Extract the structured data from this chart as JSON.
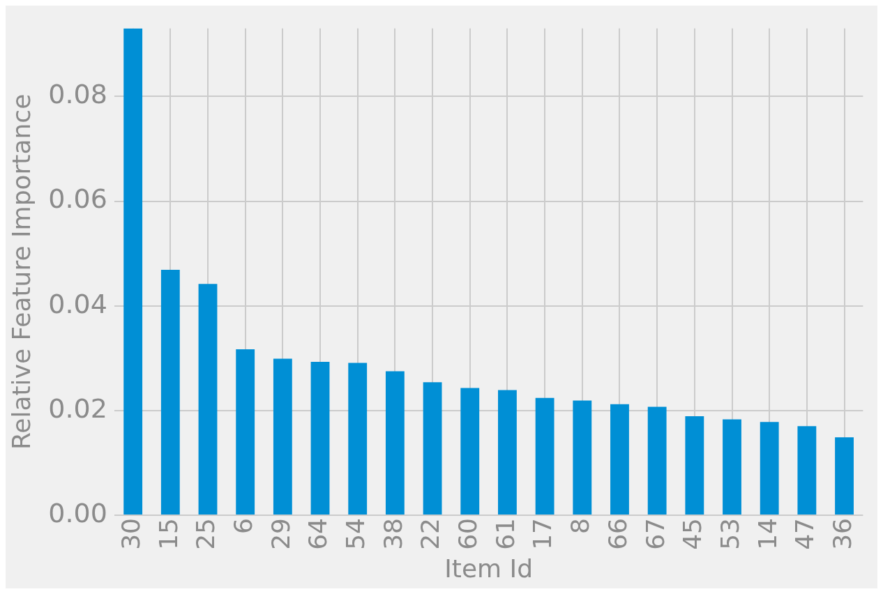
{
  "chart_data": {
    "type": "bar",
    "xlabel": "Item Id",
    "ylabel": "Relative Feature Importance",
    "categories": [
      "30",
      "15",
      "25",
      "6",
      "29",
      "64",
      "54",
      "38",
      "22",
      "60",
      "61",
      "17",
      "8",
      "66",
      "67",
      "45",
      "53",
      "14",
      "47",
      "36"
    ],
    "values": [
      0.093,
      0.0469,
      0.0442,
      0.0317,
      0.0299,
      0.0293,
      0.0291,
      0.0275,
      0.0254,
      0.0243,
      0.0239,
      0.0224,
      0.0219,
      0.0212,
      0.0207,
      0.0189,
      0.0183,
      0.0178,
      0.017,
      0.0149
    ],
    "color": "#008fd5",
    "ylim": [
      0,
      0.093
    ],
    "yticks": [
      {
        "value": 0,
        "label": "0.00"
      },
      {
        "value": 0.02,
        "label": "0.02"
      },
      {
        "value": 0.04,
        "label": "0.04"
      },
      {
        "value": 0.06,
        "label": "0.06"
      },
      {
        "value": 0.08,
        "label": "0.08"
      }
    ],
    "grid": true,
    "legend": false
  }
}
